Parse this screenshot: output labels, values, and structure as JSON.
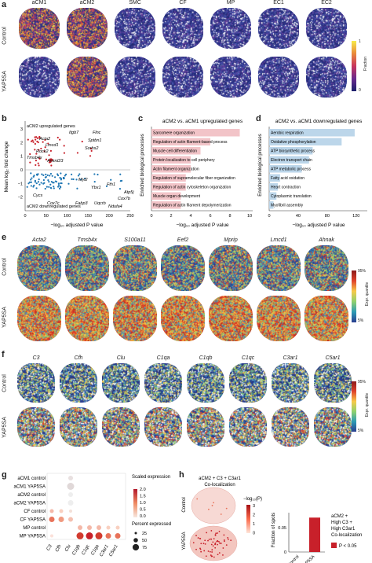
{
  "panel_labels": {
    "a": "a",
    "b": "b",
    "c": "c",
    "d": "d",
    "e": "e",
    "f": "f",
    "g": "g",
    "h": "h"
  },
  "panel_a": {
    "columns": [
      "aCM1",
      "aCM2",
      "SMC",
      "CF",
      "MP",
      "EC1",
      "EC2"
    ],
    "rows": [
      "Control",
      "YAP5SA"
    ],
    "colorbar_label": "Fraction",
    "colorbar_ticks": [
      "1",
      "0"
    ],
    "intensity": {
      "Control": [
        0.75,
        0.55,
        0.15,
        0.2,
        0.15,
        0.2,
        0.15
      ],
      "YAP5SA": [
        0.1,
        0.7,
        0.1,
        0.15,
        0.15,
        0.1,
        0.1
      ]
    }
  },
  "panel_b": {
    "ylabel": "Mean log₂ fold change",
    "xlabel": "−log₁₀ adjusted P value",
    "up_label": "aCM2 upregulated genes",
    "down_label": "aCM2 downregulated genes",
    "x_ticks": [
      "0",
      "50",
      "100",
      "150",
      "200",
      "250"
    ],
    "y_ticks": [
      "3",
      "2",
      "1",
      "0",
      "−1",
      "−2"
    ],
    "up_genes": [
      "Itgb7",
      "Flnc",
      "Acta2",
      "Lmcd1",
      "Rock2",
      "Sptbn1",
      "Tmsb4x",
      "Sorbs2",
      "Ankrd23"
    ],
    "down_genes": [
      "Myl2",
      "Ybx1",
      "Fth1",
      "Cox7b",
      "Cycs",
      "Cox7c",
      "Fabp3",
      "Uqcrb",
      "Ndufa4",
      "Atp5j"
    ]
  },
  "chart_data": [
    {
      "type": "bar",
      "title": "aCM2 vs. aCM1 upregulated genes",
      "ylabel": "Enriched biological processes",
      "xlabel": "−log₁₀ adjusted P value",
      "categories": [
        "Sarcomere organization",
        "Regulation of actin filament-based process",
        "Muscle cell differentiation",
        "Protein localization to cell periphery",
        "Actin filament organization",
        "Regulation of supramolecular fiber organization",
        "Regulation of actin cytoskeleton organization",
        "Muscle organ development",
        "Regulation of actin filament depolymerization"
      ],
      "values": [
        9,
        6,
        5,
        4,
        4,
        3.5,
        3.5,
        3,
        3
      ],
      "x_ticks": [
        "0",
        "2",
        "4",
        "6",
        "8",
        "10"
      ],
      "xlim": [
        0,
        10
      ]
    },
    {
      "type": "bar",
      "title": "aCM2 vs. aCM1 downregulated genes",
      "ylabel": "Enriched biological processes",
      "xlabel": "−log₁₀ adjusted P value",
      "categories": [
        "Aerobic respiration",
        "Oxidative phosphorylation",
        "ATP biosynthetic process",
        "Electron transport chain",
        "ATP metabolic process",
        "Fatty acid oxidation",
        "Heart contraction",
        "Cytoplasmic translation",
        "Myofibril assembly"
      ],
      "values": [
        118,
        100,
        60,
        55,
        45,
        15,
        12,
        10,
        6
      ],
      "x_ticks": [
        "0",
        "40",
        "80",
        "120"
      ],
      "xlim": [
        0,
        130
      ]
    },
    {
      "type": "bar",
      "title": "aCM2 + C3 + C3ar1 Co-localization",
      "ylabel": "Fraction of spots",
      "categories": [
        "Control",
        "YAP5SA"
      ],
      "values": [
        0.0,
        0.07
      ],
      "y_ticks": [
        "0",
        "0.05"
      ],
      "ylim": [
        0,
        0.08
      ],
      "legend": {
        "title": "aCM2 + High C3 + High C3ar1 Co-localization",
        "entry": "P < 0.05"
      }
    }
  ],
  "panel_e": {
    "genes": [
      "Acta2",
      "Tmsb4x",
      "S100a11",
      "Eef2",
      "Mprip",
      "Lmcd1",
      "Ahnak"
    ],
    "rows": [
      "Control",
      "YAP5SA"
    ],
    "colorbar_label": "Expr. quantile",
    "colorbar_ticks": [
      "95%",
      "5%"
    ]
  },
  "panel_f": {
    "genes": [
      "C3",
      "Cfh",
      "Clu",
      "C1qa",
      "C1qb",
      "C1qc",
      "C3ar1",
      "C5ar1"
    ],
    "rows": [
      "Control",
      "YAP5SA"
    ],
    "colorbar_label": "Expr. quantile",
    "colorbar_ticks": [
      "95%",
      "5%"
    ]
  },
  "panel_g": {
    "rows": [
      "aCM1 control",
      "aCM1 YAP5SA",
      "aCM2 control",
      "aCM2 YAP5SA",
      "CF control",
      "CF YAP5SA",
      "MP control",
      "MP YAP5SA"
    ],
    "genes": [
      "C3",
      "Cfh",
      "Clu",
      "C1qb",
      "C1qc",
      "C1qa",
      "C3ar1",
      "C5ar1"
    ],
    "scale_title": "Scaled expression",
    "scale_ticks": [
      "2.0",
      "1.5",
      "1.0",
      "0.5",
      "0.0"
    ],
    "pct_title": "Percent expressed",
    "pct_ticks": [
      "25",
      "50",
      "75"
    ]
  },
  "panel_h": {
    "title_line1": "aCM2 + C3 + C3ar1",
    "title_line2": "Co-localization",
    "rows": [
      "Control",
      "YAP5SA"
    ],
    "colorbar_label": "−log₁₀(P)",
    "colorbar_ticks": [
      "3",
      "2",
      "1",
      "0"
    ]
  },
  "colors": {
    "accent_red": "#c8202a",
    "navy": "#1a1f5e",
    "light_blue": "#bcd6ea",
    "pink": "#f2c4c8"
  }
}
